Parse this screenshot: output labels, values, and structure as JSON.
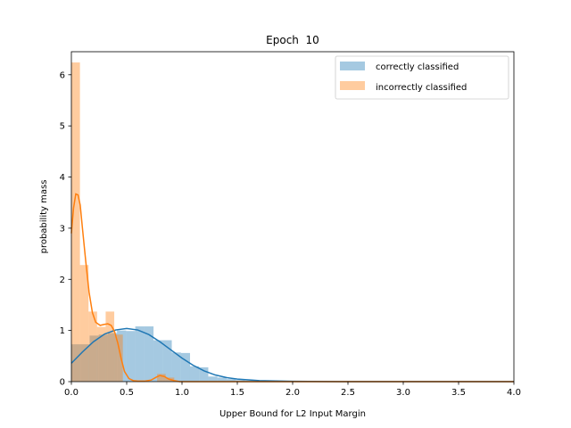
{
  "chart_data": {
    "type": "histogram",
    "title": "Epoch  10",
    "xlabel": "Upper Bound for L2 Input Margin",
    "ylabel": "probability mass",
    "xlim": [
      0,
      4.0
    ],
    "ylim": [
      0,
      6.45
    ],
    "xticks": [
      "0.0",
      "0.5",
      "1.0",
      "1.5",
      "2.0",
      "2.5",
      "3.0",
      "3.5",
      "4.0"
    ],
    "yticks": [
      "0",
      "1",
      "2",
      "3",
      "4",
      "5",
      "6"
    ],
    "legend_position": "top-right",
    "series": [
      {
        "name": "correctly classified",
        "color": "#1f77b4",
        "bins": [
          {
            "x0": 0.0,
            "x1": 0.0825,
            "value": 0.73
          },
          {
            "x0": 0.0825,
            "x1": 0.165,
            "value": 0.73
          },
          {
            "x0": 0.165,
            "x1": 0.2475,
            "value": 0.9
          },
          {
            "x0": 0.2475,
            "x1": 0.33,
            "value": 0.92
          },
          {
            "x0": 0.33,
            "x1": 0.4125,
            "value": 0.95
          },
          {
            "x0": 0.4125,
            "x1": 0.495,
            "value": 1.0
          },
          {
            "x0": 0.495,
            "x1": 0.5775,
            "value": 0.99
          },
          {
            "x0": 0.5775,
            "x1": 0.66,
            "value": 1.08
          },
          {
            "x0": 0.66,
            "x1": 0.7425,
            "value": 1.08
          },
          {
            "x0": 0.7425,
            "x1": 0.825,
            "value": 0.81
          },
          {
            "x0": 0.825,
            "x1": 0.9075,
            "value": 0.81
          },
          {
            "x0": 0.9075,
            "x1": 0.99,
            "value": 0.57
          },
          {
            "x0": 0.99,
            "x1": 1.0725,
            "value": 0.56
          },
          {
            "x0": 1.0725,
            "x1": 1.155,
            "value": 0.3
          },
          {
            "x0": 1.155,
            "x1": 1.2375,
            "value": 0.28
          },
          {
            "x0": 1.2375,
            "x1": 1.32,
            "value": 0.1
          },
          {
            "x0": 1.32,
            "x1": 1.4025,
            "value": 0.08
          },
          {
            "x0": 1.4025,
            "x1": 1.485,
            "value": 0.05
          },
          {
            "x0": 1.485,
            "x1": 1.5675,
            "value": 0.03
          },
          {
            "x0": 1.5675,
            "x1": 1.65,
            "value": 0.02
          },
          {
            "x0": 1.65,
            "x1": 1.7325,
            "value": 0.02
          },
          {
            "x0": 1.7325,
            "x1": 1.815,
            "value": 0.01
          },
          {
            "x0": 1.815,
            "x1": 1.8975,
            "value": 0.01
          },
          {
            "x0": 1.8975,
            "x1": 1.98,
            "value": 0.01
          }
        ],
        "kde": [
          [
            0.0,
            0.36
          ],
          [
            0.1,
            0.58
          ],
          [
            0.2,
            0.78
          ],
          [
            0.3,
            0.93
          ],
          [
            0.4,
            1.01
          ],
          [
            0.5,
            1.04
          ],
          [
            0.6,
            1.01
          ],
          [
            0.7,
            0.92
          ],
          [
            0.8,
            0.78
          ],
          [
            0.9,
            0.62
          ],
          [
            1.0,
            0.46
          ],
          [
            1.1,
            0.32
          ],
          [
            1.2,
            0.21
          ],
          [
            1.3,
            0.13
          ],
          [
            1.4,
            0.08
          ],
          [
            1.5,
            0.05
          ],
          [
            1.7,
            0.02
          ],
          [
            2.0,
            0.006
          ],
          [
            2.5,
            0.0
          ],
          [
            4.0,
            0.0
          ]
        ]
      },
      {
        "name": "incorrectly classified",
        "color": "#ff7f0e",
        "bins": [
          {
            "x0": 0.0,
            "x1": 0.0775,
            "value": 6.24
          },
          {
            "x0": 0.0775,
            "x1": 0.155,
            "value": 2.28
          },
          {
            "x0": 0.155,
            "x1": 0.2325,
            "value": 1.37
          },
          {
            "x0": 0.2325,
            "x1": 0.31,
            "value": 1.07
          },
          {
            "x0": 0.31,
            "x1": 0.3875,
            "value": 1.37
          },
          {
            "x0": 0.3875,
            "x1": 0.465,
            "value": 0.92
          },
          {
            "x0": 0.465,
            "x1": 0.5425,
            "value": 0.0
          },
          {
            "x0": 0.5425,
            "x1": 0.62,
            "value": 0.0
          },
          {
            "x0": 0.62,
            "x1": 0.6975,
            "value": 0.0
          },
          {
            "x0": 0.6975,
            "x1": 0.775,
            "value": 0.0
          },
          {
            "x0": 0.775,
            "x1": 0.8525,
            "value": 0.15
          },
          {
            "x0": 0.8525,
            "x1": 0.93,
            "value": 0.08
          }
        ],
        "kde": [
          [
            0.0,
            2.9
          ],
          [
            0.02,
            3.4
          ],
          [
            0.04,
            3.67
          ],
          [
            0.06,
            3.65
          ],
          [
            0.08,
            3.45
          ],
          [
            0.1,
            3.0
          ],
          [
            0.13,
            2.35
          ],
          [
            0.16,
            1.75
          ],
          [
            0.19,
            1.35
          ],
          [
            0.22,
            1.16
          ],
          [
            0.26,
            1.1
          ],
          [
            0.3,
            1.12
          ],
          [
            0.33,
            1.13
          ],
          [
            0.36,
            1.1
          ],
          [
            0.39,
            0.98
          ],
          [
            0.42,
            0.75
          ],
          [
            0.45,
            0.45
          ],
          [
            0.48,
            0.2
          ],
          [
            0.52,
            0.06
          ],
          [
            0.56,
            0.02
          ],
          [
            0.6,
            0.01
          ],
          [
            0.66,
            0.01
          ],
          [
            0.72,
            0.03
          ],
          [
            0.77,
            0.09
          ],
          [
            0.8,
            0.12
          ],
          [
            0.84,
            0.1
          ],
          [
            0.88,
            0.05
          ],
          [
            0.93,
            0.02
          ],
          [
            0.98,
            0.0
          ],
          [
            4.0,
            0.0
          ]
        ]
      }
    ]
  }
}
